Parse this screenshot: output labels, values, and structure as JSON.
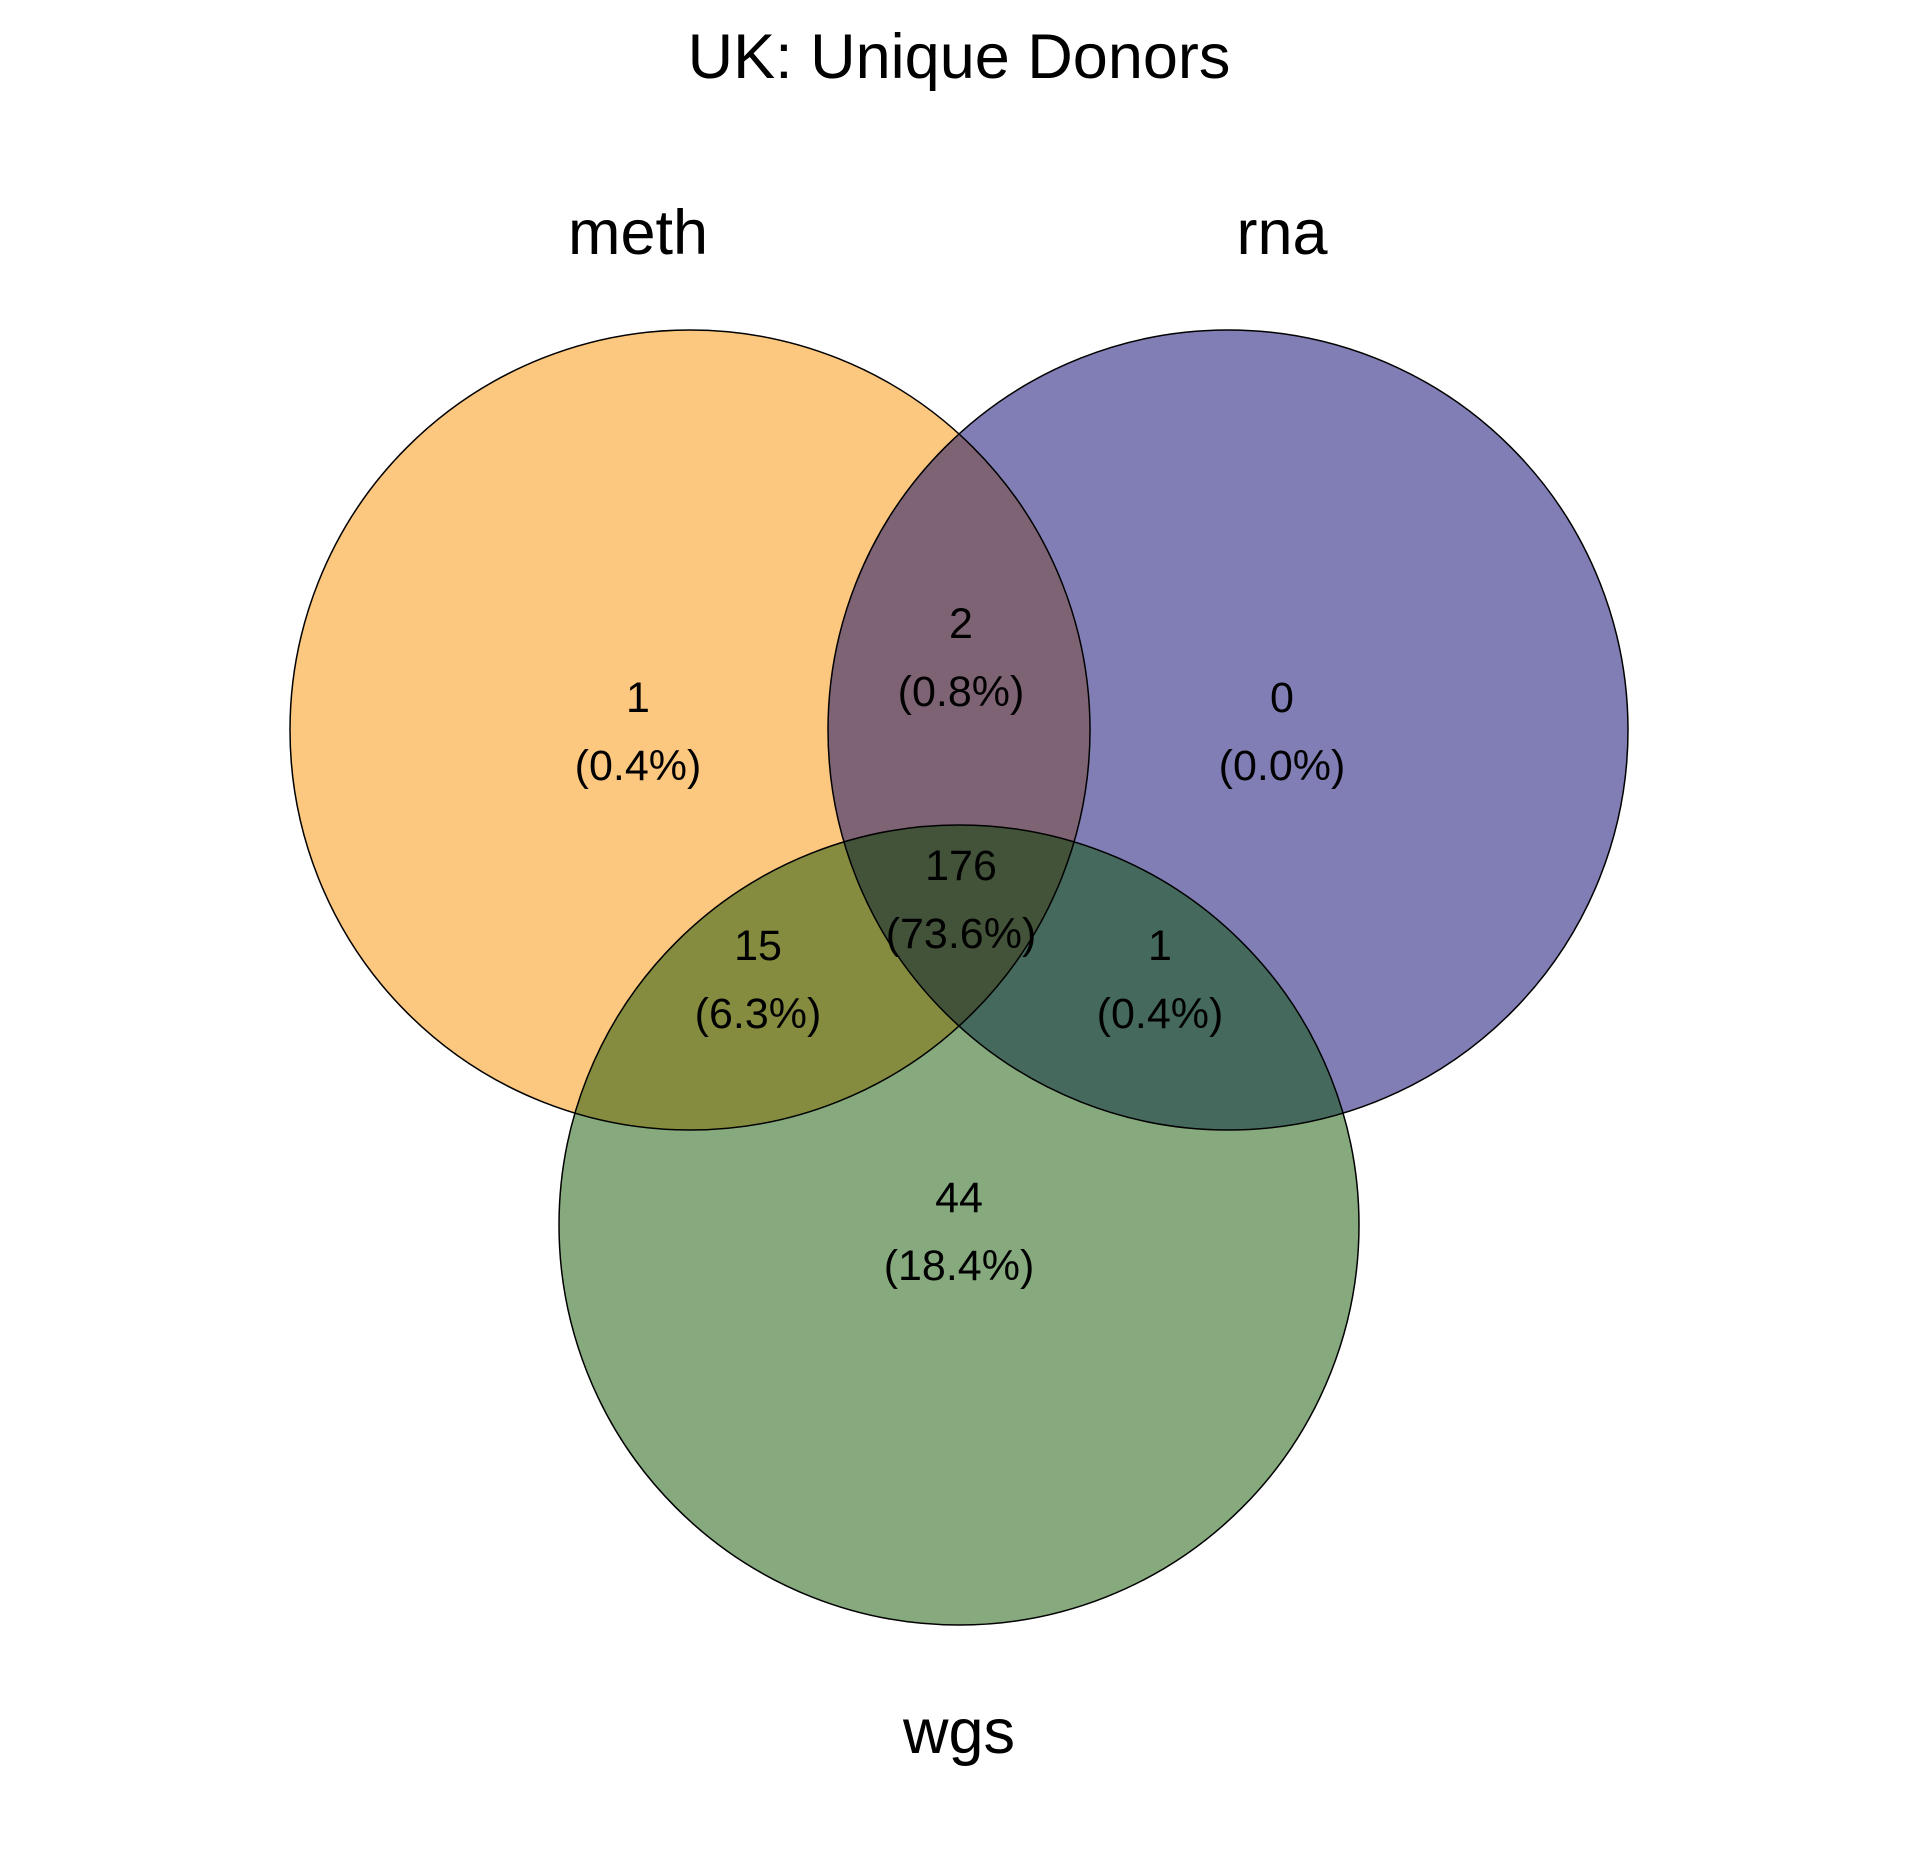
{
  "title": "UK: Unique Donors",
  "sets": [
    {
      "id": "meth",
      "label": "meth",
      "color": "#FCC77F"
    },
    {
      "id": "rna",
      "label": "rna",
      "color": "#807EB5"
    },
    {
      "id": "wgs",
      "label": "wgs",
      "color": "#86AA7E"
    }
  ],
  "regions": {
    "meth_only": {
      "count": "1",
      "percent": "(0.4%)"
    },
    "rna_only": {
      "count": "0",
      "percent": "(0.0%)"
    },
    "wgs_only": {
      "count": "44",
      "percent": "(18.4%)"
    },
    "meth_rna": {
      "count": "2",
      "percent": "(0.8%)"
    },
    "meth_wgs": {
      "count": "15",
      "percent": "(6.3%)"
    },
    "rna_wgs": {
      "count": "1",
      "percent": "(0.4%)"
    },
    "all_three": {
      "count": "176",
      "percent": "(73.6%)"
    }
  },
  "overlap_colors": {
    "meth_rna": "#7E6374",
    "meth_wgs": "#858C3F",
    "rna_wgs": "#456A5D",
    "all_three": "#43533A"
  },
  "stroke_color": "#000000"
}
